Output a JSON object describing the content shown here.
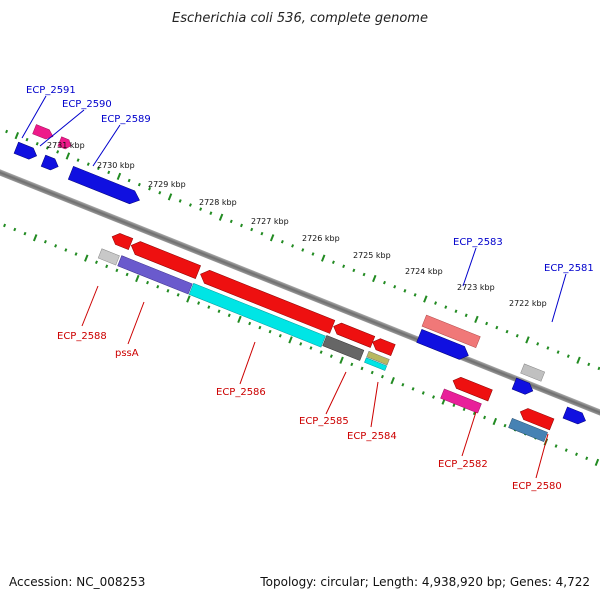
{
  "title": "Escherichia coli 536, complete genome",
  "footer": {
    "accession": "Accession: NC_008253",
    "summary": "Topology: circular; Length: 4,938,920 bp; Genes: 4,722"
  },
  "scale": [
    "2731 kbp",
    "2730 kbp",
    "2729 kbp",
    "2728 kbp",
    "2727 kbp",
    "2726 kbp",
    "2725 kbp",
    "2724 kbp",
    "2723 kbp",
    "2722 kbp"
  ],
  "genes_top": [
    "ECP_2591",
    "ECP_2590",
    "ECP_2589",
    "ECP_2583",
    "ECP_2581"
  ],
  "genes_bottom": [
    "ECP_2588",
    "pssA",
    "ECP_2586",
    "ECP_2585",
    "ECP_2584",
    "ECP_2582",
    "ECP_2580"
  ],
  "colors": {
    "top_label": "#0000cc",
    "bottom_label": "#cc0000",
    "axis": "#777777",
    "tick": "#228b22"
  }
}
